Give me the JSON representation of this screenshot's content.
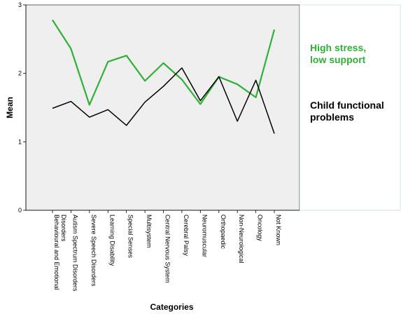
{
  "chart_data": {
    "type": "line",
    "xlabel": "Categories",
    "ylabel": "Mean",
    "ylim": [
      0,
      3
    ],
    "yticks": [
      "0",
      "1",
      "2",
      "3"
    ],
    "categories": [
      "Behavioural and Emotional Disorders",
      "Autism Spectrum Disorders",
      "Severe Speech Disorders",
      "Learning Disability",
      "Special Senses",
      "Multisystem",
      "Central Nervous System",
      "Cerebral Palsy",
      "Neuromuscular",
      "Orthopaedic",
      "Non-Neurological",
      "Oncology",
      "Not Known"
    ],
    "series": [
      {
        "name": "High stress, low support",
        "name_lines": [
          "High stress,",
          "low support"
        ],
        "color": "#2eb135",
        "values": [
          2.78,
          2.36,
          1.54,
          2.17,
          2.26,
          1.89,
          2.15,
          1.91,
          1.55,
          1.95,
          1.84,
          1.65,
          2.64
        ]
      },
      {
        "name": "Child functional problems",
        "name_lines": [
          "Child functional",
          "problems"
        ],
        "color": "#000000",
        "values": [
          1.49,
          1.59,
          1.36,
          1.47,
          1.24,
          1.58,
          1.81,
          2.08,
          1.6,
          1.95,
          1.3,
          1.9,
          1.12
        ]
      }
    ],
    "plot_background": "#efefef",
    "legend_position": "right"
  }
}
